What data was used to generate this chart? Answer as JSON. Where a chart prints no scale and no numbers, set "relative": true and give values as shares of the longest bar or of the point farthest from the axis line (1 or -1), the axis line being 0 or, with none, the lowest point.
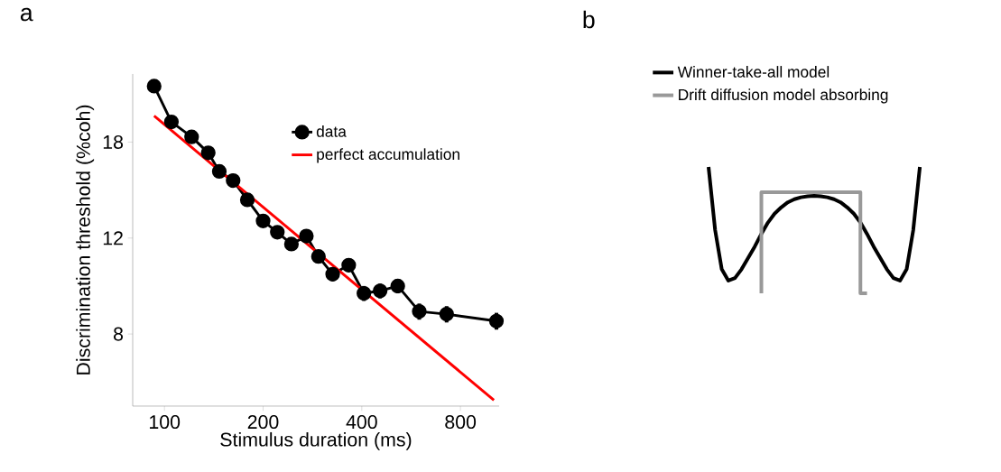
{
  "chart_data": [
    {
      "type": "line",
      "title": "a",
      "xlabel": "Stimulus duration (ms)",
      "ylabel": "Discrimination threshold (%coh)",
      "log": "xy",
      "xlim": [
        80,
        1050
      ],
      "ylim": [
        5.9,
        24
      ],
      "xticks": [
        100,
        200,
        400,
        800
      ],
      "yticks": [
        8,
        12,
        18
      ],
      "legend": "top right",
      "series": [
        {
          "name": "data",
          "color": "#000000",
          "marker": "circle",
          "x": [
            93,
            105,
            121,
            136,
            147,
            162,
            179,
            200,
            221,
            244,
            271,
            295,
            326,
            365,
            406,
            455,
            515,
            599,
            726,
            1030
          ],
          "values": [
            22.8,
            19.6,
            18.4,
            17.2,
            15.9,
            15.3,
            14.1,
            12.9,
            12.3,
            11.7,
            12.1,
            11.1,
            10.3,
            10.7,
            9.5,
            9.6,
            9.8,
            8.8,
            8.7,
            8.45
          ],
          "errors": [
            0.6,
            0.4,
            0.4,
            0.3,
            0.3,
            0.3,
            0.3,
            0.3,
            0.3,
            0.3,
            0.3,
            0.3,
            0.3,
            0.3,
            0.3,
            0.3,
            0.3,
            0.3,
            0.3,
            0.3
          ]
        },
        {
          "name": "perfect accumulation",
          "color": "#ff0000",
          "marker": "none",
          "x": [
            93,
            1012
          ],
          "values": [
            20.1,
            6.05
          ]
        }
      ]
    },
    {
      "type": "line",
      "title": "b",
      "relative": true,
      "legend": "top left",
      "categories": [
        null,
        null,
        null,
        null,
        null,
        null,
        null,
        null,
        null,
        null,
        null,
        null,
        null,
        null,
        null,
        null,
        null,
        null,
        null,
        null,
        null,
        null,
        null,
        null,
        null,
        null,
        null,
        null,
        null,
        null,
        null,
        null,
        null
      ],
      "series": [
        {
          "name": "Winner-take-all model",
          "color": "#000000",
          "values": [
            1,
            0.5,
            0.19,
            0.1,
            0.12,
            0.19,
            0.28,
            0.37,
            0.47,
            0.56,
            0.63,
            0.68,
            0.72,
            0.745,
            0.76,
            0.768,
            0.771,
            0.768,
            0.76,
            0.745,
            0.72,
            0.68,
            0.63,
            0.56,
            0.47,
            0.37,
            0.28,
            0.19,
            0.12,
            0.1,
            0.19,
            0.5,
            1
          ]
        },
        {
          "name": "Drift diffusion model absorbing",
          "color": "#999999",
          "type": "step",
          "values": [
            null,
            null,
            null,
            null,
            null,
            null,
            null,
            null,
            0,
            0.8,
            0.8,
            0.8,
            0.8,
            0.8,
            0.8,
            0.8,
            0.8,
            0.8,
            0.8,
            0.8,
            0.8,
            0.8,
            0.8,
            0.8,
            0,
            null,
            null,
            null,
            null,
            null,
            null,
            null,
            null
          ]
        }
      ]
    }
  ]
}
